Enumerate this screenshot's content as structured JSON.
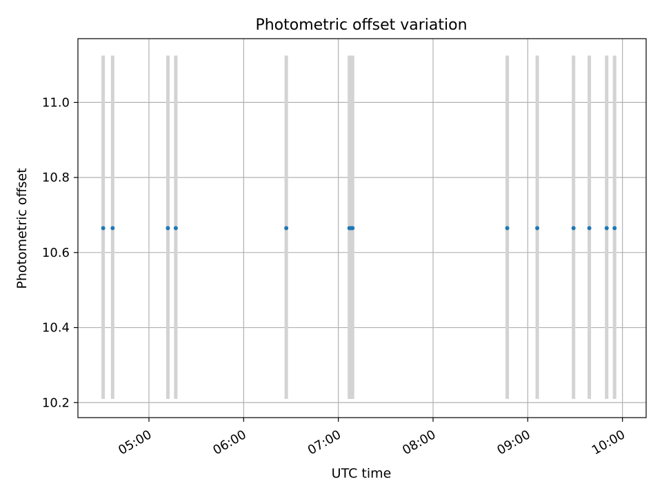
{
  "chart_data": {
    "type": "scatter",
    "title": "Photometric offset variation",
    "xlabel": "UTC time",
    "ylabel": "Photometric offset",
    "xlim": [
      "04:15",
      "10:15"
    ],
    "ylim": [
      10.16,
      11.17
    ],
    "x_ticks": [
      "05:00",
      "06:00",
      "07:00",
      "08:00",
      "09:00",
      "10:00"
    ],
    "y_ticks": [
      10.2,
      10.4,
      10.6,
      10.8,
      11.0
    ],
    "y_tick_labels": [
      "10.2",
      "10.4",
      "10.6",
      "10.8",
      "11.0"
    ],
    "grid": true,
    "vertical_bands": {
      "ymin": 10.21,
      "ymax": 11.125,
      "color": "#d3d3d3"
    },
    "points": {
      "color": "#1f77b4",
      "x": [
        "04:31",
        "04:37",
        "05:12",
        "05:17",
        "06:27",
        "07:07",
        "07:08",
        "07:09",
        "08:47",
        "09:06",
        "09:29",
        "09:39",
        "09:50",
        "09:55"
      ],
      "y": [
        10.665,
        10.665,
        10.665,
        10.665,
        10.665,
        10.665,
        10.665,
        10.665,
        10.665,
        10.665,
        10.665,
        10.665,
        10.665,
        10.665
      ]
    }
  }
}
